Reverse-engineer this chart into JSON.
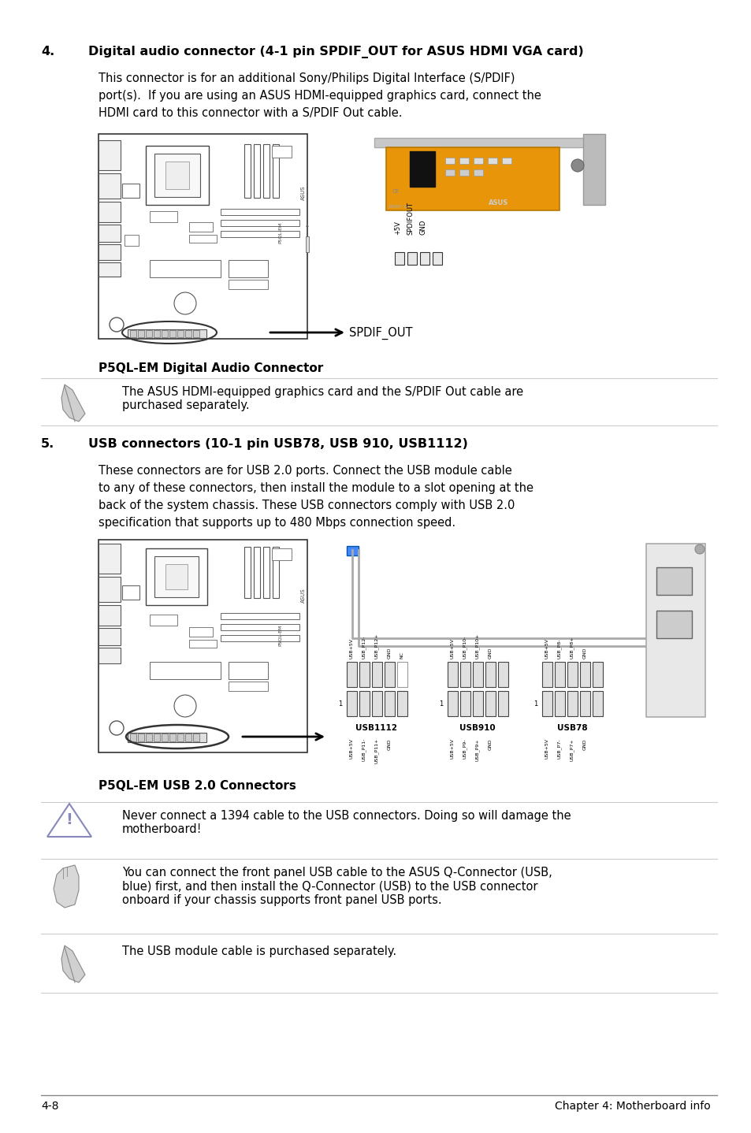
{
  "page_bg": "#ffffff",
  "text_color": "#000000",
  "footer_left": "4-8",
  "footer_right": "Chapter 4: Motherboard info",
  "section4_number": "4.",
  "section4_title": "Digital audio connector (4-1 pin SPDIF_OUT for ASUS HDMI VGA card)",
  "section4_body_lines": [
    "This connector is for an additional Sony/Philips Digital Interface (S/PDIF)",
    "port(s).  If you are using an ASUS HDMI-equipped graphics card, connect the",
    "HDMI card to this connector with a S/PDIF Out cable."
  ],
  "diagram1_caption": "P5QL-EM Digital Audio Connector",
  "note1_text": "The ASUS HDMI-equipped graphics card and the S/PDIF Out cable are\npurchased separately.",
  "section5_number": "5.",
  "section5_title": "USB connectors (10-1 pin USB78, USB 910, USB1112)",
  "section5_body_lines": [
    "These connectors are for USB 2.0 ports. Connect the USB module cable",
    "to any of these connectors, then install the module to a slot opening at the",
    "back of the system chassis. These USB connectors comply with USB 2.0",
    "specification that supports up to 480 Mbps connection speed."
  ],
  "diagram2_caption": "P5QL-EM USB 2.0 Connectors",
  "warning_text": "Never connect a 1394 cable to the USB connectors. Doing so will damage the\nmotherboard!",
  "note2_text": "You can connect the front panel USB cable to the ASUS Q-Connector (USB,\nblue) first, and then install the Q-Connector (USB) to the USB connector\nonboard if your chassis supports front panel USB ports.",
  "note3_text": "The USB module cable is purchased separately.",
  "title_fs": 11.5,
  "body_fs": 10.5,
  "caption_fs": 11,
  "footer_fs": 10,
  "small_fs": 9
}
